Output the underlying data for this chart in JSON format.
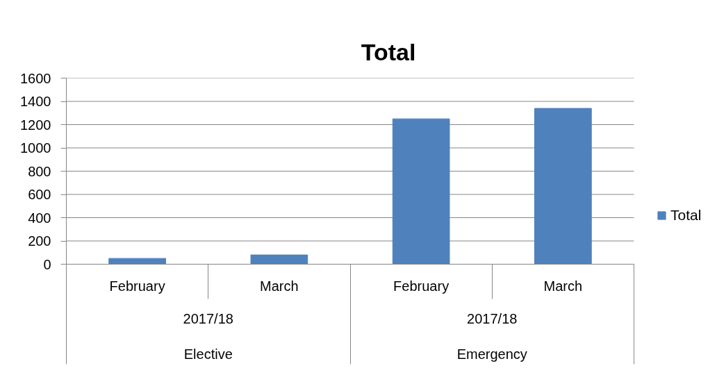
{
  "chart_data": {
    "type": "bar",
    "title": "Total",
    "categories": [
      "February",
      "March",
      "February",
      "March"
    ],
    "series": [
      {
        "name": "Total",
        "color": "#4f81bd",
        "values": [
          50,
          80,
          1250,
          1340
        ]
      }
    ],
    "ylim": [
      0,
      1600
    ],
    "yticks": [
      0,
      200,
      400,
      600,
      800,
      1000,
      1200,
      1400,
      1600
    ],
    "grid": "y",
    "legend": "right",
    "annotations": [
      "2017/18",
      "2017/18",
      "Elective",
      "Emergency"
    ]
  }
}
